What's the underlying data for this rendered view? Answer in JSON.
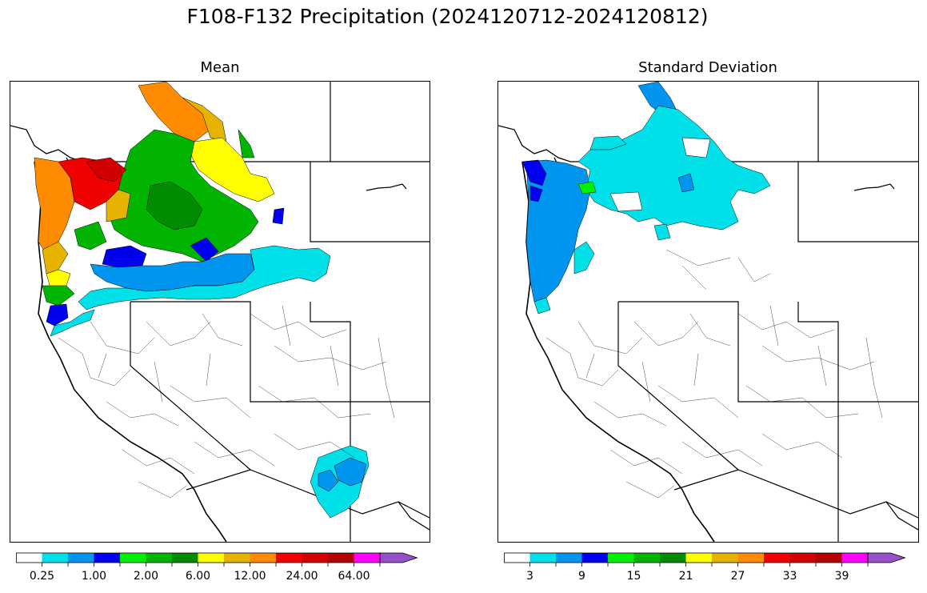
{
  "title": "F108-F132 Precipitation (2024120712-2024120812)",
  "panels": [
    {
      "title": "Mean"
    },
    {
      "title": "Standard Deviation"
    }
  ],
  "colorbar_colors": [
    "#ffffff",
    "#00e0e8",
    "#0096f0",
    "#0000f0",
    "#00f000",
    "#00b400",
    "#008c00",
    "#ffff00",
    "#e6b400",
    "#ff8c00",
    "#f00000",
    "#d20000",
    "#b40000",
    "#ff00ff",
    "#9650c8"
  ],
  "colorbars": [
    {
      "ticks": [
        "0.25",
        "1.00",
        "2.00",
        "6.00",
        "12.00",
        "24.00",
        "64.00"
      ]
    },
    {
      "ticks": [
        "3",
        "9",
        "15",
        "21",
        "27",
        "33",
        "39"
      ]
    }
  ]
}
